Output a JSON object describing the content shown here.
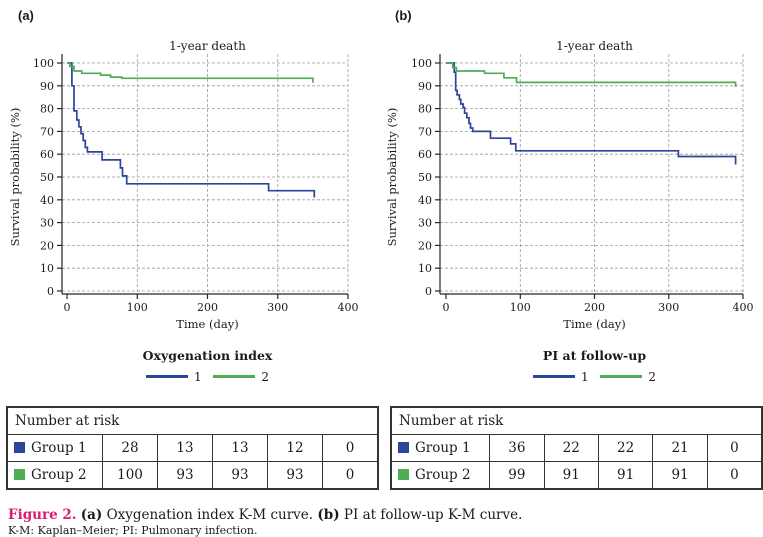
{
  "colors": {
    "group1": "#2a469b",
    "group2": "#4fae55",
    "grid": "#9b9b9b",
    "axis": "#1d2433",
    "caption_accent": "#d81b74"
  },
  "caption": {
    "figure_label": "Figure 2.",
    "a_bold": "(a)",
    "a_text": " Oxygenation index K-M curve. ",
    "b_bold": "(b)",
    "b_text": " PI at follow-up K-M curve.",
    "footnote": "K-M: Kaplan–Meier; PI: Pulmonary infection."
  },
  "chart_data": [
    {
      "type": "line",
      "subtype": "kaplan-meier-step",
      "panel_label": "(a)",
      "title": "1-year death",
      "xlabel": "Time (day)",
      "ylabel": "Survival probability (%)",
      "xlim": [
        0,
        400
      ],
      "ylim": [
        0,
        100
      ],
      "xticks": [
        0,
        100,
        200,
        300,
        400
      ],
      "yticks": [
        0,
        10,
        20,
        30,
        40,
        50,
        60,
        70,
        80,
        90,
        100
      ],
      "grid": true,
      "legend": {
        "title": "Oxygenation index",
        "position": "bottom",
        "entries": [
          {
            "label": "1",
            "color_key": "group1"
          },
          {
            "label": "2",
            "color_key": "group2"
          }
        ]
      },
      "series": [
        {
          "name": "1",
          "color_key": "group1",
          "step_points": [
            [
              0,
              100
            ],
            [
              7,
              90
            ],
            [
              10,
              79
            ],
            [
              14,
              75
            ],
            [
              17,
              72
            ],
            [
              20,
              69
            ],
            [
              23,
              66
            ],
            [
              26,
              63
            ],
            [
              29,
              61
            ],
            [
              50,
              57.5
            ],
            [
              76,
              54
            ],
            [
              79,
              50.5
            ],
            [
              85,
              47
            ],
            [
              287,
              44
            ],
            [
              352,
              41
            ]
          ]
        },
        {
          "name": "2",
          "color_key": "group2",
          "step_points": [
            [
              0,
              100
            ],
            [
              4,
              98.5
            ],
            [
              10,
              96.5
            ],
            [
              21,
              95.5
            ],
            [
              48,
              94.7
            ],
            [
              62,
              93.8
            ],
            [
              78,
              93.3
            ],
            [
              350,
              91.3
            ]
          ]
        }
      ],
      "risk_table": {
        "header": "Number at risk",
        "rows": [
          {
            "label": "Group 1",
            "color_key": "group1",
            "values": [
              28,
              13,
              13,
              12,
              0
            ]
          },
          {
            "label": "Group 2",
            "color_key": "group2",
            "values": [
              100,
              93,
              93,
              93,
              0
            ]
          }
        ]
      }
    },
    {
      "type": "line",
      "subtype": "kaplan-meier-step",
      "panel_label": "(b)",
      "title": "1-year death",
      "xlabel": "Time (day)",
      "ylabel": "Survival probability (%)",
      "xlim": [
        0,
        400
      ],
      "ylim": [
        0,
        100
      ],
      "xticks": [
        0,
        100,
        200,
        300,
        400
      ],
      "yticks": [
        0,
        10,
        20,
        30,
        40,
        50,
        60,
        70,
        80,
        90,
        100
      ],
      "grid": true,
      "legend": {
        "title": "PI at follow-up",
        "position": "bottom",
        "entries": [
          {
            "label": "1",
            "color_key": "group1"
          },
          {
            "label": "2",
            "color_key": "group2"
          }
        ]
      },
      "series": [
        {
          "name": "1",
          "color_key": "group1",
          "step_points": [
            [
              0,
              100
            ],
            [
              11,
              96
            ],
            [
              13,
              88
            ],
            [
              15,
              86
            ],
            [
              18,
              84
            ],
            [
              20,
              82
            ],
            [
              23,
              80.5
            ],
            [
              25,
              78
            ],
            [
              28,
              76
            ],
            [
              31,
              73.5
            ],
            [
              33,
              71.5
            ],
            [
              36,
              70
            ],
            [
              60,
              67
            ],
            [
              87,
              64.5
            ],
            [
              94,
              61.5
            ],
            [
              313,
              59
            ],
            [
              390,
              55.5
            ]
          ]
        },
        {
          "name": "2",
          "color_key": "group2",
          "step_points": [
            [
              0,
              100
            ],
            [
              9,
              98
            ],
            [
              14,
              96.5
            ],
            [
              52,
              95.5
            ],
            [
              78,
              93.5
            ],
            [
              95,
              91.5
            ],
            [
              390,
              89.5
            ]
          ]
        }
      ],
      "risk_table": {
        "header": "Number at risk",
        "rows": [
          {
            "label": "Group 1",
            "color_key": "group1",
            "values": [
              36,
              22,
              22,
              21,
              0
            ]
          },
          {
            "label": "Group 2",
            "color_key": "group2",
            "values": [
              99,
              91,
              91,
              91,
              0
            ]
          }
        ]
      }
    }
  ]
}
